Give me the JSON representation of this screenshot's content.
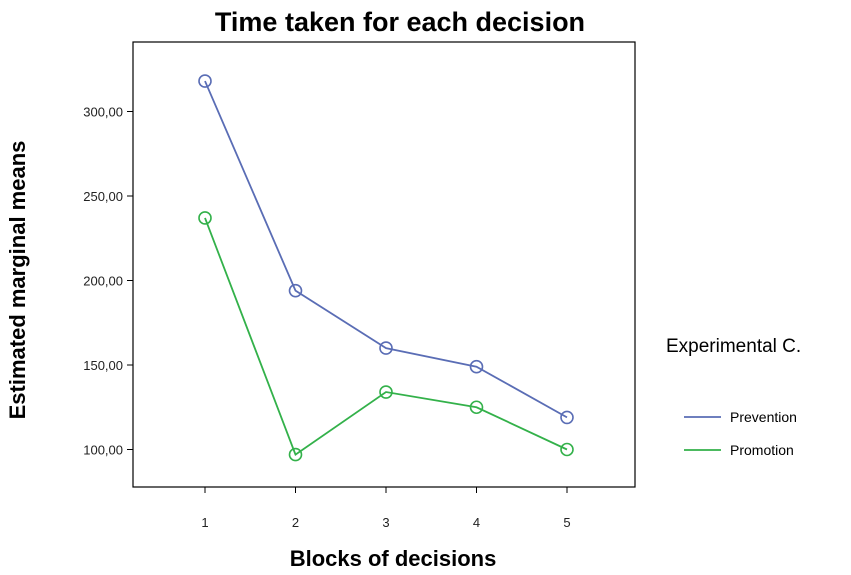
{
  "chart_data": {
    "type": "line",
    "title": "Time taken for each decision",
    "xlabel": "Blocks of decisions",
    "ylabel": "Estimated marginal means",
    "categories": [
      "1",
      "2",
      "3",
      "4",
      "5"
    ],
    "yticks": [
      "100,00",
      "150,00",
      "200,00",
      "250,00",
      "300,00"
    ],
    "ylim": [
      80,
      340
    ],
    "legend_title": "Experimental C.",
    "legend_position": "right",
    "grid": false,
    "series": [
      {
        "name": "Prevention",
        "color": "#5a6db5",
        "values": [
          318,
          194,
          160,
          149,
          119
        ]
      },
      {
        "name": "Promotion",
        "color": "#33b14a",
        "values": [
          237,
          97,
          134,
          125,
          100
        ]
      }
    ]
  }
}
